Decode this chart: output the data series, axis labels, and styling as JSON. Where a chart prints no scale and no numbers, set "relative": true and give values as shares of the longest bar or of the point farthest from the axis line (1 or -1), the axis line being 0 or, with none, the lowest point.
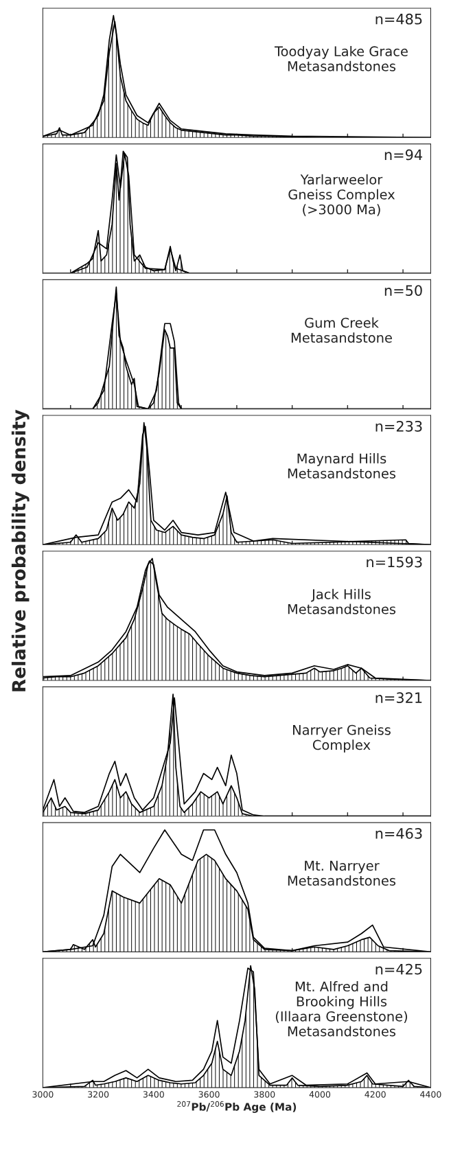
{
  "chart_data": [
    {
      "type": "area",
      "relative": true,
      "xlim": [
        3000,
        4400
      ],
      "tick_labels": false,
      "xticks": [
        3000,
        {
          "value": 3100,
          "label": null
        },
        3200,
        {
          "value": 3300,
          "label": null
        },
        3400,
        {
          "value": 3500,
          "label": null
        },
        3600,
        {
          "value": 3700,
          "label": null
        },
        3800,
        {
          "value": 3900,
          "label": null
        },
        4000,
        {
          "value": 4100,
          "label": null
        },
        4200,
        {
          "value": 4300,
          "label": null
        },
        4400
      ],
      "annotations": [
        "n=485",
        "Toodyay Lake Grace\nMetasandstones"
      ],
      "series": [
        {
          "type": "area",
          "color": "#000000",
          "x": [
            3000,
            3050,
            3060,
            3070,
            3100,
            3150,
            3180,
            3200,
            3220,
            3240,
            3255,
            3265,
            3280,
            3300,
            3320,
            3340,
            3360,
            3380,
            3400,
            3420,
            3440,
            3460,
            3480,
            3500,
            3540,
            3580,
            3620,
            3660,
            3700,
            3760,
            3800,
            3900,
            4000,
            4400
          ],
          "values": [
            0.01,
            0.03,
            0.08,
            0.02,
            0.02,
            0.04,
            0.12,
            0.18,
            0.35,
            0.8,
            1.0,
            0.85,
            0.5,
            0.3,
            0.22,
            0.15,
            0.12,
            0.1,
            0.2,
            0.25,
            0.18,
            0.12,
            0.08,
            0.06,
            0.05,
            0.04,
            0.03,
            0.02,
            0.02,
            0.01,
            0.01,
            0.005,
            0,
            0
          ]
        },
        {
          "type": "line",
          "color": "#000000",
          "x": [
            3000,
            3060,
            3100,
            3180,
            3220,
            3240,
            3260,
            3280,
            3300,
            3340,
            3380,
            3420,
            3460,
            3500,
            3580,
            3660,
            3760,
            3900,
            4400
          ],
          "values": [
            0.01,
            0.06,
            0.02,
            0.1,
            0.3,
            0.7,
            0.95,
            0.6,
            0.35,
            0.18,
            0.12,
            0.28,
            0.14,
            0.07,
            0.05,
            0.03,
            0.02,
            0.01,
            0
          ]
        }
      ]
    },
    {
      "type": "area",
      "relative": true,
      "xlim": [
        3000,
        4400
      ],
      "tick_labels": false,
      "xticks": [
        3000,
        {
          "value": 3100,
          "label": null
        },
        3200,
        {
          "value": 3300,
          "label": null
        },
        3400,
        {
          "value": 3500,
          "label": null
        },
        3600,
        {
          "value": 3700,
          "label": null
        },
        3800,
        {
          "value": 3900,
          "label": null
        },
        4000,
        {
          "value": 4100,
          "label": null
        },
        4200,
        {
          "value": 4300,
          "label": null
        },
        4400
      ],
      "annotations": [
        "n=94",
        "Yarlarweelor\nGneiss Complex\n(>3000 Ma)"
      ],
      "series": [
        {
          "type": "area",
          "color": "#000000",
          "x": [
            3000,
            3100,
            3130,
            3160,
            3180,
            3200,
            3210,
            3230,
            3250,
            3265,
            3275,
            3290,
            3305,
            3315,
            3330,
            3350,
            3370,
            3400,
            3440,
            3460,
            3470,
            3480,
            3495,
            3505,
            3530,
            4400
          ],
          "values": [
            0,
            0,
            0.04,
            0.08,
            0.12,
            0.35,
            0.1,
            0.15,
            0.4,
            0.9,
            0.6,
            1.0,
            0.95,
            0.4,
            0.1,
            0.15,
            0.05,
            0.02,
            0.03,
            0.22,
            0.1,
            0.02,
            0.15,
            0.02,
            0,
            0
          ]
        },
        {
          "type": "line",
          "color": "#000000",
          "x": [
            3000,
            3100,
            3160,
            3200,
            3230,
            3250,
            3265,
            3280,
            3295,
            3310,
            3330,
            3370,
            3440,
            3460,
            3480,
            3530,
            4400
          ],
          "values": [
            0,
            0,
            0.05,
            0.25,
            0.2,
            0.6,
            0.97,
            0.7,
            0.98,
            0.8,
            0.15,
            0.04,
            0.03,
            0.2,
            0.04,
            0,
            0
          ]
        }
      ]
    },
    {
      "type": "area",
      "relative": true,
      "xlim": [
        3000,
        4400
      ],
      "tick_labels": false,
      "xticks": [
        3000,
        {
          "value": 3100,
          "label": null
        },
        3200,
        {
          "value": 3300,
          "label": null
        },
        3400,
        {
          "value": 3500,
          "label": null
        },
        3600,
        {
          "value": 3700,
          "label": null
        },
        3800,
        {
          "value": 3900,
          "label": null
        },
        4000,
        {
          "value": 4100,
          "label": null
        },
        4200,
        {
          "value": 4300,
          "label": null
        },
        4400
      ],
      "annotations": [
        "n=50",
        "Gum Creek\nMetasandstone"
      ],
      "series": [
        {
          "type": "area",
          "color": "#000000",
          "x": [
            3000,
            3180,
            3200,
            3220,
            3240,
            3255,
            3265,
            3275,
            3290,
            3300,
            3320,
            3330,
            3340,
            3380,
            3400,
            3420,
            3440,
            3450,
            3460,
            3475,
            3485,
            3500,
            4400
          ],
          "values": [
            0,
            0,
            0.05,
            0.2,
            0.35,
            0.75,
            1.0,
            0.6,
            0.5,
            0.35,
            0.2,
            0.25,
            0.02,
            0,
            0.05,
            0.3,
            0.65,
            0.6,
            0.5,
            0.5,
            0.05,
            0,
            0
          ]
        },
        {
          "type": "line",
          "color": "#000000",
          "x": [
            3000,
            3180,
            3220,
            3250,
            3265,
            3280,
            3300,
            3330,
            3345,
            3380,
            3410,
            3440,
            3460,
            3475,
            3490,
            3500,
            4400
          ],
          "values": [
            0,
            0,
            0.15,
            0.7,
            0.95,
            0.55,
            0.4,
            0.2,
            0.02,
            0,
            0.15,
            0.7,
            0.7,
            0.55,
            0.05,
            0,
            0
          ]
        }
      ]
    },
    {
      "type": "area",
      "relative": true,
      "xlim": [
        3000,
        4400
      ],
      "tick_labels": false,
      "xticks": [
        3000,
        {
          "value": 3100,
          "label": null
        },
        3200,
        {
          "value": 3300,
          "label": null
        },
        3400,
        {
          "value": 3500,
          "label": null
        },
        3600,
        {
          "value": 3700,
          "label": null
        },
        3800,
        {
          "value": 3900,
          "label": null
        },
        4000,
        {
          "value": 4100,
          "label": null
        },
        4200,
        {
          "value": 4300,
          "label": null
        },
        4400
      ],
      "annotations": [
        "n=233",
        "Maynard Hills\nMetasandstones"
      ],
      "series": [
        {
          "type": "area",
          "color": "#000000",
          "x": [
            3000,
            3100,
            3120,
            3140,
            3200,
            3230,
            3250,
            3270,
            3290,
            3310,
            3330,
            3350,
            3365,
            3375,
            3390,
            3410,
            3440,
            3470,
            3500,
            3540,
            3580,
            3620,
            3650,
            3665,
            3680,
            3700,
            3830,
            3900,
            4310,
            4320,
            4400
          ],
          "values": [
            0,
            0.02,
            0.08,
            0.02,
            0.05,
            0.12,
            0.3,
            0.2,
            0.25,
            0.35,
            0.3,
            0.5,
            1.0,
            0.8,
            0.2,
            0.12,
            0.1,
            0.15,
            0.08,
            0.06,
            0.05,
            0.08,
            0.25,
            0.4,
            0.1,
            0.02,
            0.04,
            0.01,
            0.04,
            0.01,
            0
          ]
        },
        {
          "type": "line",
          "color": "#000000",
          "x": [
            3000,
            3120,
            3200,
            3250,
            3280,
            3310,
            3340,
            3360,
            3370,
            3385,
            3400,
            3440,
            3470,
            3500,
            3560,
            3620,
            3660,
            3690,
            3760,
            3830,
            4400
          ],
          "values": [
            0,
            0.06,
            0.08,
            0.35,
            0.38,
            0.45,
            0.35,
            0.9,
            0.97,
            0.6,
            0.2,
            0.12,
            0.2,
            0.1,
            0.08,
            0.1,
            0.43,
            0.1,
            0.03,
            0.05,
            0
          ]
        }
      ]
    },
    {
      "type": "area",
      "relative": true,
      "xlim": [
        3000,
        4400
      ],
      "tick_labels": false,
      "xticks": [
        3000,
        {
          "value": 3100,
          "label": null
        },
        3200,
        {
          "value": 3300,
          "label": null
        },
        3400,
        {
          "value": 3500,
          "label": null
        },
        3600,
        {
          "value": 3700,
          "label": null
        },
        3800,
        {
          "value": 3900,
          "label": null
        },
        4000,
        {
          "value": 4100,
          "label": null
        },
        4200,
        {
          "value": 4300,
          "label": null
        },
        4400
      ],
      "ylabel": "Relative probability density",
      "annotations": [
        "n=1593",
        "Jack Hills\nMetasandstones"
      ],
      "series": [
        {
          "type": "area",
          "color": "#000000",
          "x": [
            3000,
            3050,
            3100,
            3150,
            3200,
            3250,
            3300,
            3330,
            3360,
            3380,
            3395,
            3410,
            3430,
            3450,
            3480,
            3500,
            3530,
            3560,
            3600,
            3650,
            3700,
            3750,
            3800,
            3850,
            3900,
            3950,
            3980,
            4000,
            4050,
            4080,
            4100,
            4130,
            4150,
            4180,
            4250,
            4400
          ],
          "values": [
            0.02,
            0.03,
            0.03,
            0.06,
            0.12,
            0.22,
            0.35,
            0.5,
            0.75,
            0.95,
            1.0,
            0.8,
            0.55,
            0.5,
            0.45,
            0.42,
            0.38,
            0.3,
            0.2,
            0.1,
            0.06,
            0.04,
            0.03,
            0.04,
            0.05,
            0.06,
            0.1,
            0.07,
            0.08,
            0.1,
            0.12,
            0.06,
            0.1,
            0.02,
            0.01,
            0
          ]
        },
        {
          "type": "line",
          "color": "#000000",
          "x": [
            3000,
            3100,
            3200,
            3250,
            3300,
            3340,
            3370,
            3385,
            3400,
            3420,
            3450,
            3500,
            3550,
            3600,
            3650,
            3700,
            3800,
            3900,
            3980,
            4050,
            4100,
            4150,
            4200,
            4400
          ],
          "values": [
            0.03,
            0.04,
            0.15,
            0.25,
            0.4,
            0.6,
            0.9,
            0.98,
            0.95,
            0.7,
            0.6,
            0.5,
            0.4,
            0.25,
            0.12,
            0.07,
            0.04,
            0.06,
            0.12,
            0.09,
            0.13,
            0.1,
            0.02,
            0
          ]
        }
      ]
    },
    {
      "type": "area",
      "relative": true,
      "xlim": [
        3000,
        4400
      ],
      "tick_labels": false,
      "xticks": [
        3000,
        {
          "value": 3100,
          "label": null
        },
        3200,
        {
          "value": 3300,
          "label": null
        },
        3400,
        {
          "value": 3500,
          "label": null
        },
        3600,
        {
          "value": 3700,
          "label": null
        },
        3800,
        {
          "value": 3900,
          "label": null
        },
        4000,
        {
          "value": 4100,
          "label": null
        },
        4200,
        {
          "value": 4300,
          "label": null
        },
        4400
      ],
      "annotations": [
        "n=321",
        "Narryer Gneiss\nComplex"
      ],
      "series": [
        {
          "type": "area",
          "color": "#000000",
          "x": [
            3000,
            3030,
            3050,
            3080,
            3100,
            3150,
            3200,
            3240,
            3260,
            3280,
            3300,
            3320,
            3350,
            3400,
            3430,
            3450,
            3470,
            3480,
            3495,
            3510,
            3540,
            3570,
            3600,
            3630,
            3650,
            3680,
            3700,
            3720,
            3760,
            4400
          ],
          "values": [
            0.03,
            0.15,
            0.05,
            0.08,
            0.03,
            0.02,
            0.05,
            0.2,
            0.3,
            0.15,
            0.2,
            0.1,
            0.03,
            0.08,
            0.25,
            0.5,
            1.0,
            0.4,
            0.08,
            0.03,
            0.1,
            0.2,
            0.15,
            0.2,
            0.1,
            0.25,
            0.15,
            0.02,
            0,
            0
          ]
        },
        {
          "type": "line",
          "color": "#000000",
          "x": [
            3000,
            3040,
            3060,
            3080,
            3110,
            3150,
            3200,
            3240,
            3260,
            3280,
            3300,
            3330,
            3360,
            3400,
            3440,
            3460,
            3475,
            3490,
            3510,
            3550,
            3580,
            3610,
            3630,
            3660,
            3680,
            3700,
            3720,
            3760,
            3800,
            4400
          ],
          "values": [
            0.05,
            0.3,
            0.08,
            0.15,
            0.04,
            0.03,
            0.08,
            0.35,
            0.45,
            0.25,
            0.35,
            0.15,
            0.05,
            0.15,
            0.45,
            0.6,
            0.97,
            0.6,
            0.1,
            0.2,
            0.35,
            0.3,
            0.4,
            0.25,
            0.5,
            0.35,
            0.05,
            0.01,
            0,
            0
          ]
        }
      ]
    },
    {
      "type": "area",
      "relative": true,
      "xlim": [
        3000,
        4400
      ],
      "tick_labels": false,
      "xticks": [
        3000,
        {
          "value": 3100,
          "label": null
        },
        3200,
        {
          "value": 3300,
          "label": null
        },
        3400,
        {
          "value": 3500,
          "label": null
        },
        3600,
        {
          "value": 3700,
          "label": null
        },
        3800,
        {
          "value": 3900,
          "label": null
        },
        4000,
        {
          "value": 4100,
          "label": null
        },
        4200,
        {
          "value": 4300,
          "label": null
        },
        4400
      ],
      "annotations": [
        "n=463",
        "Mt. Narryer\nMetasandstones"
      ],
      "series": [
        {
          "type": "area",
          "color": "#000000",
          "x": [
            3000,
            3100,
            3110,
            3150,
            3180,
            3190,
            3220,
            3250,
            3290,
            3350,
            3420,
            3460,
            3500,
            3560,
            3590,
            3620,
            3660,
            3700,
            3740,
            3760,
            3800,
            3900,
            3980,
            4050,
            4100,
            4150,
            4180,
            4210,
            4250,
            4400
          ],
          "values": [
            0,
            0.02,
            0.06,
            0.02,
            0.1,
            0.04,
            0.15,
            0.5,
            0.45,
            0.4,
            0.6,
            0.55,
            0.4,
            0.75,
            0.8,
            0.75,
            0.6,
            0.5,
            0.35,
            0.1,
            0.02,
            0.01,
            0.04,
            0.02,
            0.05,
            0.1,
            0.12,
            0.05,
            0.01,
            0
          ]
        },
        {
          "type": "line",
          "color": "#000000",
          "x": [
            3000,
            3100,
            3180,
            3220,
            3250,
            3280,
            3350,
            3400,
            3440,
            3500,
            3540,
            3580,
            3620,
            3660,
            3700,
            3740,
            3760,
            3800,
            3900,
            3980,
            4100,
            4150,
            4190,
            4230,
            4400
          ],
          "values": [
            0,
            0.02,
            0.05,
            0.3,
            0.7,
            0.8,
            0.65,
            0.85,
            1.0,
            0.8,
            0.75,
            1.0,
            1.0,
            0.8,
            0.65,
            0.4,
            0.12,
            0.03,
            0.01,
            0.05,
            0.08,
            0.15,
            0.22,
            0.04,
            0
          ]
        }
      ]
    },
    {
      "type": "area",
      "relative": true,
      "xlabel": "$^{207}$Pb/$^{206}$Pb Age (Ma)",
      "xlim": [
        3000,
        4400
      ],
      "xticks": [
        3000,
        {
          "value": 3100,
          "label": null
        },
        3200,
        {
          "value": 3300,
          "label": null
        },
        3400,
        {
          "value": 3500,
          "label": null
        },
        3600,
        {
          "value": 3700,
          "label": null
        },
        3800,
        {
          "value": 3900,
          "label": null
        },
        4000,
        {
          "value": 4100,
          "label": null
        },
        4200,
        {
          "value": 4300,
          "label": null
        },
        4400
      ],
      "annotations": [
        "n=425",
        "Mt. Alfred and\nBrooking Hills\n(Illaara Greenstone)\nMetasandstones"
      ],
      "series": [
        {
          "type": "area",
          "color": "#000000",
          "x": [
            3000,
            3150,
            3180,
            3190,
            3220,
            3260,
            3300,
            3340,
            3380,
            3420,
            3460,
            3500,
            3550,
            3580,
            3610,
            3630,
            3650,
            3680,
            3710,
            3730,
            3750,
            3765,
            3780,
            3820,
            3880,
            3900,
            3920,
            4000,
            4100,
            4150,
            4170,
            4190,
            4300,
            4320,
            4340,
            4400
          ],
          "values": [
            0,
            0.01,
            0.06,
            0.02,
            0.03,
            0.05,
            0.08,
            0.05,
            0.1,
            0.06,
            0.04,
            0.03,
            0.04,
            0.1,
            0.2,
            0.38,
            0.15,
            0.1,
            0.3,
            0.55,
            1.0,
            0.8,
            0.1,
            0.02,
            0.02,
            0.08,
            0.02,
            0.01,
            0.02,
            0.05,
            0.1,
            0.03,
            0.01,
            0.06,
            0.01,
            0
          ]
        },
        {
          "type": "line",
          "color": "#000000",
          "x": [
            3000,
            3180,
            3220,
            3260,
            3300,
            3340,
            3380,
            3420,
            3480,
            3540,
            3580,
            3610,
            3630,
            3650,
            3680,
            3710,
            3740,
            3760,
            3780,
            3820,
            3900,
            3950,
            4100,
            4170,
            4200,
            4320,
            4400
          ],
          "values": [
            0,
            0.05,
            0.05,
            0.1,
            0.14,
            0.08,
            0.15,
            0.08,
            0.05,
            0.06,
            0.15,
            0.3,
            0.55,
            0.25,
            0.2,
            0.55,
            0.98,
            0.95,
            0.15,
            0.03,
            0.1,
            0.02,
            0.03,
            0.12,
            0.03,
            0.05,
            0
          ]
        }
      ]
    }
  ]
}
